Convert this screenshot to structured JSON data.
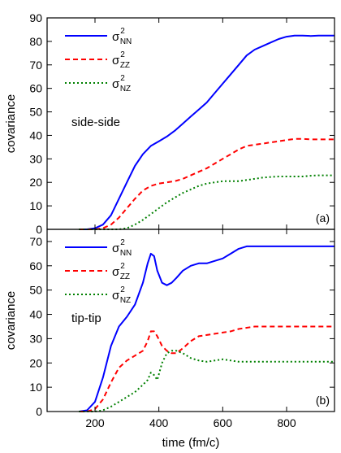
{
  "chart_data": [
    {
      "panel_id": "a",
      "type": "line",
      "xlabel": "",
      "ylabel": "covariance",
      "xlim": [
        50,
        950
      ],
      "ylim": [
        0,
        90
      ],
      "xticks": [
        200,
        400,
        600,
        800
      ],
      "yticks": [
        0,
        10,
        20,
        30,
        40,
        50,
        60,
        70,
        80,
        90
      ],
      "annotation": "side-side",
      "panel_label": "(a)",
      "legend_position": "top-left",
      "series": [
        {
          "name": "σ²NN",
          "label_main": "σ",
          "label_sup": "2",
          "label_sub": "NN",
          "color": "#0000ff",
          "dash": "solid",
          "x": [
            150,
            175,
            200,
            225,
            250,
            275,
            300,
            325,
            350,
            375,
            400,
            425,
            450,
            475,
            500,
            525,
            550,
            575,
            600,
            625,
            650,
            675,
            700,
            725,
            750,
            775,
            800,
            825,
            850,
            875,
            900,
            925,
            950
          ],
          "y": [
            0,
            0,
            0.5,
            2,
            6,
            13,
            20,
            27,
            32,
            35.5,
            37.5,
            39.5,
            42,
            45,
            48,
            51,
            54,
            58,
            62,
            66,
            70,
            74,
            76.5,
            78,
            79.5,
            81,
            82,
            82.5,
            82.5,
            82.3,
            82.5,
            82.5,
            82.5
          ]
        },
        {
          "name": "σ²ZZ",
          "label_main": "σ",
          "label_sup": "2",
          "label_sub": "ZZ",
          "color": "#ff0000",
          "dash": "dashed",
          "x": [
            150,
            175,
            200,
            225,
            250,
            275,
            300,
            325,
            350,
            375,
            400,
            425,
            450,
            475,
            500,
            525,
            550,
            575,
            600,
            625,
            650,
            675,
            700,
            725,
            750,
            775,
            800,
            825,
            850,
            875,
            900,
            925,
            950
          ],
          "y": [
            0,
            0,
            0,
            0.5,
            2,
            5,
            9,
            13,
            16.5,
            18.5,
            19.5,
            20,
            20.5,
            21.5,
            23,
            24.5,
            26,
            28,
            30,
            32,
            34,
            35.5,
            36,
            36.5,
            37,
            37.5,
            38,
            38.5,
            38.5,
            38.3,
            38.3,
            38.3,
            38.3
          ]
        },
        {
          "name": "σ²NZ",
          "label_main": "σ",
          "label_sup": "2",
          "label_sub": "NZ",
          "color": "#008000",
          "dash": "dotted",
          "x": [
            150,
            175,
            200,
            225,
            250,
            275,
            300,
            325,
            350,
            375,
            400,
            425,
            450,
            475,
            500,
            525,
            550,
            575,
            600,
            625,
            650,
            675,
            700,
            725,
            750,
            775,
            800,
            825,
            850,
            875,
            900,
            925,
            950
          ],
          "y": [
            0,
            0,
            0,
            0,
            0,
            0,
            0.5,
            2,
            4,
            6.5,
            9,
            11.5,
            13.5,
            15.5,
            17,
            18.5,
            19.5,
            20,
            20.5,
            20.5,
            20.5,
            21,
            21.5,
            22,
            22.3,
            22.5,
            22.5,
            22.5,
            22.5,
            22.8,
            23,
            23,
            23
          ]
        }
      ]
    },
    {
      "panel_id": "b",
      "type": "line",
      "xlabel": "time (fm/c)",
      "ylabel": "covariance",
      "xlim": [
        50,
        950
      ],
      "ylim": [
        0,
        75
      ],
      "xticks": [
        200,
        400,
        600,
        800
      ],
      "yticks": [
        0,
        10,
        20,
        30,
        40,
        50,
        60,
        70
      ],
      "annotation": "tip-tip",
      "panel_label": "(b)",
      "legend_position": "top-left",
      "series": [
        {
          "name": "σ²NN",
          "label_main": "σ",
          "label_sup": "2",
          "label_sub": "NN",
          "color": "#0000ff",
          "dash": "solid",
          "x": [
            150,
            175,
            200,
            225,
            250,
            275,
            300,
            325,
            350,
            365,
            375,
            385,
            395,
            410,
            425,
            440,
            455,
            475,
            500,
            525,
            550,
            575,
            600,
            625,
            650,
            675,
            700,
            750,
            800,
            850,
            900,
            950
          ],
          "y": [
            0,
            0.5,
            4,
            14,
            27,
            35,
            39,
            44,
            53,
            61,
            65,
            64,
            58,
            53,
            52,
            53,
            55,
            58,
            60,
            61,
            61,
            62,
            63,
            65,
            67,
            68,
            68,
            68,
            68,
            68,
            68,
            68
          ]
        },
        {
          "name": "σ²ZZ",
          "label_main": "σ",
          "label_sup": "2",
          "label_sub": "ZZ",
          "color": "#ff0000",
          "dash": "dashed",
          "x": [
            150,
            175,
            200,
            225,
            250,
            275,
            300,
            325,
            350,
            365,
            375,
            385,
            395,
            410,
            425,
            440,
            455,
            475,
            500,
            525,
            550,
            575,
            600,
            625,
            650,
            675,
            700,
            750,
            800,
            850,
            900,
            950
          ],
          "y": [
            0,
            0,
            1,
            5,
            12,
            18,
            21,
            23,
            25,
            29,
            33,
            33,
            31,
            27,
            25,
            24,
            24,
            26,
            29,
            31,
            31.5,
            32,
            32.5,
            33,
            34,
            34.5,
            35,
            35,
            35,
            35,
            35,
            35
          ]
        },
        {
          "name": "σ²NZ",
          "label_main": "σ",
          "label_sup": "2",
          "label_sub": "NZ",
          "color": "#008000",
          "dash": "dotted",
          "x": [
            150,
            175,
            200,
            225,
            250,
            275,
            300,
            325,
            350,
            365,
            375,
            385,
            395,
            410,
            425,
            440,
            455,
            475,
            500,
            525,
            550,
            575,
            600,
            625,
            650,
            675,
            700,
            750,
            800,
            850,
            900,
            950
          ],
          "y": [
            0,
            0,
            0,
            0.5,
            2,
            4,
            6,
            8,
            11,
            13,
            16,
            15,
            13,
            20,
            24,
            25,
            25,
            24,
            22,
            21,
            20.5,
            21,
            21.5,
            21,
            20.5,
            20.5,
            20.5,
            20.5,
            20.5,
            20.5,
            20.5,
            20.5
          ]
        }
      ]
    }
  ]
}
